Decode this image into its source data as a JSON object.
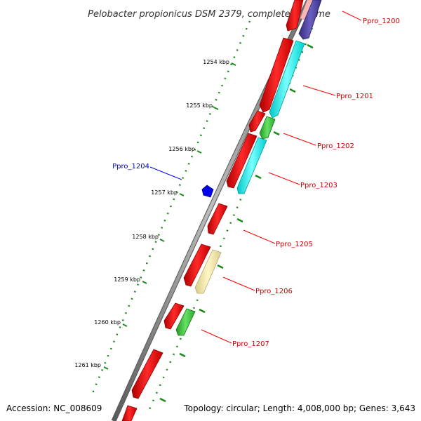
{
  "title": "Pelobacter propionicus DSM 2379, complete genome",
  "footer": {
    "accession": "Accession: NC_008609",
    "summary": "Topology: circular; Length: 4,008,000 bp; Genes: 3,643"
  },
  "colors": {
    "forward_strand": "#ff0000",
    "reverse_cyan": "#00ffff",
    "reverse_green": "#33cc33",
    "reverse_tan": "#f2e6a0",
    "reverse_purple": "#4b3f99",
    "reverse_pink": "#f7b6b6",
    "highlight_blue": "#0000ee",
    "tick_green": "#1a8a1a",
    "backbone": "#888888"
  },
  "scale_ticks": [
    {
      "label": "1254 kbp"
    },
    {
      "label": "1255 kbp"
    },
    {
      "label": "1256 kbp"
    },
    {
      "label": "1257 kbp"
    },
    {
      "label": "1258 kbp"
    },
    {
      "label": "1259 kbp"
    },
    {
      "label": "1260 kbp"
    },
    {
      "label": "1261 kbp"
    }
  ],
  "gene_labels": [
    {
      "name": "Ppro_1200",
      "color": "#cc0000"
    },
    {
      "name": "Ppro_1201",
      "color": "#cc0000"
    },
    {
      "name": "Ppro_1202",
      "color": "#cc0000"
    },
    {
      "name": "Ppro_1203",
      "color": "#cc0000"
    },
    {
      "name": "Ppro_1204",
      "color": "#0000cc"
    },
    {
      "name": "Ppro_1205",
      "color": "#cc0000"
    },
    {
      "name": "Ppro_1206",
      "color": "#cc0000"
    },
    {
      "name": "Ppro_1207",
      "color": "#cc0000"
    }
  ]
}
